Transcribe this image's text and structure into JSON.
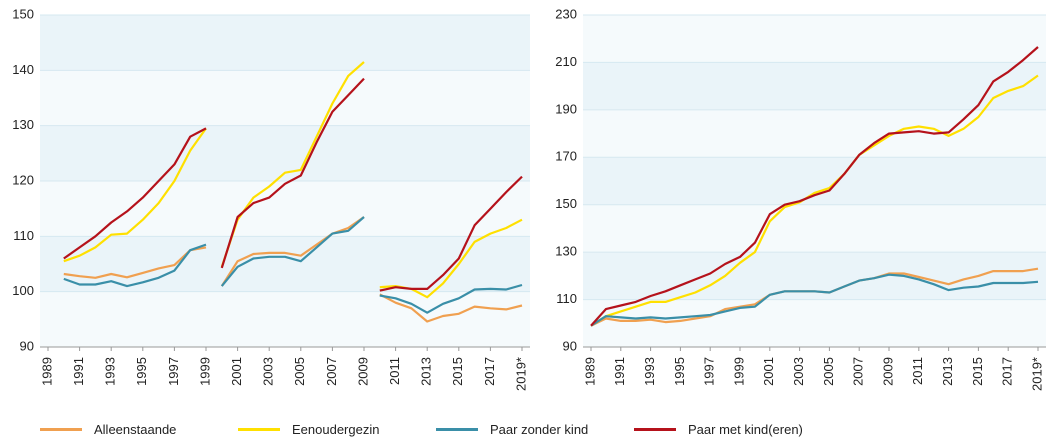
{
  "chart_data": [
    {
      "type": "line",
      "categories": [
        "1989",
        null,
        "1991",
        null,
        "1993",
        null,
        "1995",
        null,
        "1997",
        null,
        "1999",
        null,
        "2001",
        null,
        "2003",
        null,
        "2005",
        null,
        "2007",
        null,
        "2009",
        null,
        "2011",
        null,
        "2013",
        null,
        "2015",
        null,
        "2017",
        null,
        "2019*"
      ],
      "ylim": [
        90,
        150
      ],
      "yticks": [
        90,
        100,
        110,
        120,
        130,
        140,
        150
      ],
      "grid": true,
      "series": [
        {
          "color": "#f0a050",
          "values": [
            null,
            103.2,
            102.8,
            102.5,
            103.2,
            102.6,
            103.4,
            104.2,
            104.8,
            107.5,
            108,
            null,
            null,
            null,
            null,
            null,
            null,
            null,
            null,
            null,
            null,
            null,
            null,
            null,
            null,
            null,
            null,
            null,
            null,
            null,
            null
          ]
        },
        {
          "color": "#ffe000",
          "values": [
            null,
            105.5,
            106.5,
            108,
            110.3,
            110.5,
            113,
            116,
            120,
            125.5,
            129.5,
            null,
            null,
            null,
            null,
            null,
            null,
            null,
            null,
            null,
            null,
            null,
            null,
            null,
            null,
            null,
            null,
            null,
            null,
            null,
            null
          ]
        },
        {
          "color": "#3a8fa8",
          "values": [
            null,
            102.3,
            101.3,
            101.3,
            101.9,
            101,
            101.7,
            102.5,
            103.8,
            107.5,
            108.5,
            null,
            null,
            null,
            null,
            null,
            null,
            null,
            null,
            null,
            null,
            null,
            null,
            null,
            null,
            null,
            null,
            null,
            null,
            null,
            null
          ]
        },
        {
          "color": "#b5121b",
          "values": [
            null,
            106,
            108,
            110,
            112.5,
            114.5,
            117,
            120,
            123,
            128,
            129.5,
            null,
            null,
            null,
            null,
            null,
            null,
            null,
            null,
            null,
            null,
            null,
            null,
            null,
            null,
            null,
            null,
            null,
            null,
            null,
            null
          ]
        },
        {
          "color": "#f0a050",
          "values": [
            null,
            null,
            null,
            null,
            null,
            null,
            null,
            null,
            null,
            null,
            null,
            101,
            105.5,
            106.8,
            107,
            107,
            106.5,
            108.5,
            110.5,
            111.5,
            113.5,
            null,
            null,
            null,
            null,
            null,
            null,
            null,
            null,
            null,
            null
          ]
        },
        {
          "color": "#ffe000",
          "values": [
            null,
            null,
            null,
            null,
            null,
            null,
            null,
            null,
            null,
            null,
            null,
            104.5,
            113,
            117,
            119,
            121.5,
            122,
            128,
            134,
            139,
            141.5,
            null,
            null,
            null,
            null,
            null,
            null,
            null,
            null,
            null,
            null
          ]
        },
        {
          "color": "#3a8fa8",
          "values": [
            null,
            null,
            null,
            null,
            null,
            null,
            null,
            null,
            null,
            null,
            null,
            101,
            104.5,
            106,
            106.3,
            106.3,
            105.5,
            108,
            110.5,
            111,
            113.5,
            null,
            null,
            null,
            null,
            null,
            null,
            null,
            null,
            null,
            null
          ]
        },
        {
          "color": "#b5121b",
          "values": [
            null,
            null,
            null,
            null,
            null,
            null,
            null,
            null,
            null,
            null,
            null,
            104.3,
            113.5,
            116,
            117,
            119.5,
            121,
            127,
            132.5,
            135.5,
            138.5,
            null,
            null,
            null,
            null,
            null,
            null,
            null,
            null,
            null,
            null
          ]
        },
        {
          "color": "#f0a050",
          "values": [
            null,
            null,
            null,
            null,
            null,
            null,
            null,
            null,
            null,
            null,
            null,
            null,
            null,
            null,
            null,
            null,
            null,
            null,
            null,
            null,
            null,
            99.5,
            98,
            97,
            94.6,
            95.6,
            96,
            97.3,
            97,
            96.8,
            97.5
          ]
        },
        {
          "color": "#ffe000",
          "values": [
            null,
            null,
            null,
            null,
            null,
            null,
            null,
            null,
            null,
            null,
            null,
            null,
            null,
            null,
            null,
            null,
            null,
            null,
            null,
            null,
            null,
            100.8,
            101,
            100.5,
            99,
            101.5,
            105,
            109,
            110.5,
            111.5,
            113
          ]
        },
        {
          "color": "#3a8fa8",
          "values": [
            null,
            null,
            null,
            null,
            null,
            null,
            null,
            null,
            null,
            null,
            null,
            null,
            null,
            null,
            null,
            null,
            null,
            null,
            null,
            null,
            null,
            99.3,
            98.8,
            97.8,
            96.2,
            97.8,
            98.8,
            100.4,
            100.5,
            100.4,
            101.2
          ]
        },
        {
          "color": "#b5121b",
          "values": [
            null,
            null,
            null,
            null,
            null,
            null,
            null,
            null,
            null,
            null,
            null,
            null,
            null,
            null,
            null,
            null,
            null,
            null,
            null,
            null,
            null,
            100.2,
            100.8,
            100.5,
            100.5,
            103,
            106,
            112,
            115,
            118,
            120.8
          ]
        }
      ]
    },
    {
      "type": "line",
      "categories": [
        "1989",
        null,
        "1991",
        null,
        "1993",
        null,
        "1995",
        null,
        "1997",
        null,
        "1999",
        null,
        "2001",
        null,
        "2003",
        null,
        "2005",
        null,
        "2007",
        null,
        "2009",
        null,
        "2011",
        null,
        "2013",
        null,
        "2015",
        null,
        "2017",
        null,
        "2019*"
      ],
      "ylim": [
        90,
        230
      ],
      "yticks": [
        90,
        110,
        130,
        150,
        170,
        190,
        210,
        230
      ],
      "grid": true,
      "series": [
        {
          "name": "Alleenstaande",
          "color": "#f0a050",
          "values": [
            99,
            102,
            101,
            101,
            101.5,
            100.5,
            101,
            102,
            103,
            106,
            107,
            108,
            112,
            113.5,
            113.5,
            113.5,
            113,
            115.5,
            118,
            119,
            121,
            121,
            119.5,
            118,
            116.5,
            118.5,
            120,
            122,
            122,
            122,
            123
          ]
        },
        {
          "name": "Eenoudergezin",
          "color": "#ffe000",
          "values": [
            99,
            103,
            105,
            107,
            109,
            109,
            111,
            113,
            116,
            120,
            125.5,
            130,
            143,
            149,
            151,
            155,
            157,
            163,
            171,
            175,
            179,
            182,
            183,
            182,
            179,
            182,
            187,
            195,
            198,
            200,
            204.5
          ]
        },
        {
          "name": "Paar zonder kind",
          "color": "#3a8fa8",
          "values": [
            99,
            103,
            102.5,
            102,
            102.5,
            102,
            102.5,
            103,
            103.5,
            105,
            106.5,
            107,
            112,
            113.5,
            113.5,
            113.5,
            113,
            115.5,
            118,
            119,
            120.5,
            120,
            118.5,
            116.5,
            114,
            115,
            115.5,
            117,
            117,
            117,
            117.5
          ]
        },
        {
          "name": "Paar met kind(eren)",
          "color": "#b5121b",
          "values": [
            99,
            106,
            107.5,
            109,
            111.5,
            113.5,
            116,
            118.5,
            121,
            125,
            128,
            134,
            146,
            150,
            151.5,
            154,
            156,
            163,
            171,
            176,
            180,
            180.5,
            181,
            180,
            180.5,
            186,
            192,
            202,
            206,
            211,
            216.5
          ]
        }
      ]
    }
  ]
}
